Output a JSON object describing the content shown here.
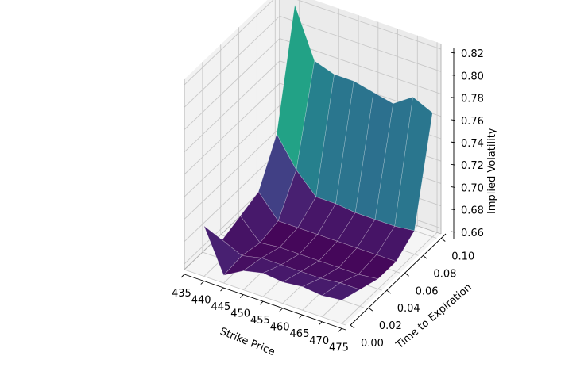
{
  "chart_data": {
    "type": "surface3d",
    "title": "",
    "xlabel": "Strike Price",
    "ylabel": "Time to Expiration",
    "zlabel": "Implied Volatility",
    "colormap": "viridis",
    "x_ticks": [
      "435",
      "440",
      "445",
      "450",
      "455",
      "460",
      "465",
      "470",
      "475"
    ],
    "y_ticks": [
      "0.00",
      "0.02",
      "0.04",
      "0.06",
      "0.08",
      "0.10"
    ],
    "z_ticks": [
      "0.66",
      "0.68",
      "0.70",
      "0.72",
      "0.74",
      "0.76",
      "0.78",
      "0.80",
      "0.82"
    ],
    "xlim": [
      435,
      476
    ],
    "ylim": [
      0.0,
      0.105
    ],
    "zlim": [
      0.655,
      0.825
    ],
    "x": [
      440,
      445,
      450,
      455,
      460,
      465,
      470,
      475
    ],
    "y": [
      0.0,
      0.02,
      0.04,
      0.06,
      0.08,
      0.1
    ],
    "z_grid_note": "rows = time to expiration (y), columns = strike price (x)",
    "z": [
      [
        0.7,
        0.662,
        0.672,
        0.676,
        0.674,
        0.676,
        0.674,
        0.676
      ],
      [
        0.672,
        0.664,
        0.668,
        0.668,
        0.668,
        0.668,
        0.67,
        0.67
      ],
      [
        0.678,
        0.66,
        0.662,
        0.662,
        0.662,
        0.662,
        0.662,
        0.664
      ],
      [
        0.684,
        0.664,
        0.664,
        0.664,
        0.664,
        0.664,
        0.664,
        0.664
      ],
      [
        0.72,
        0.694,
        0.676,
        0.676,
        0.674,
        0.674,
        0.674,
        0.676
      ],
      [
        0.82,
        0.776,
        0.77,
        0.77,
        0.766,
        0.762,
        0.774,
        0.766
      ]
    ],
    "grid": true,
    "legend": null
  },
  "labels": {
    "x_axis": "Strike Price",
    "y_axis": "Time to Expiration",
    "z_axis": "Implied Volatility"
  }
}
